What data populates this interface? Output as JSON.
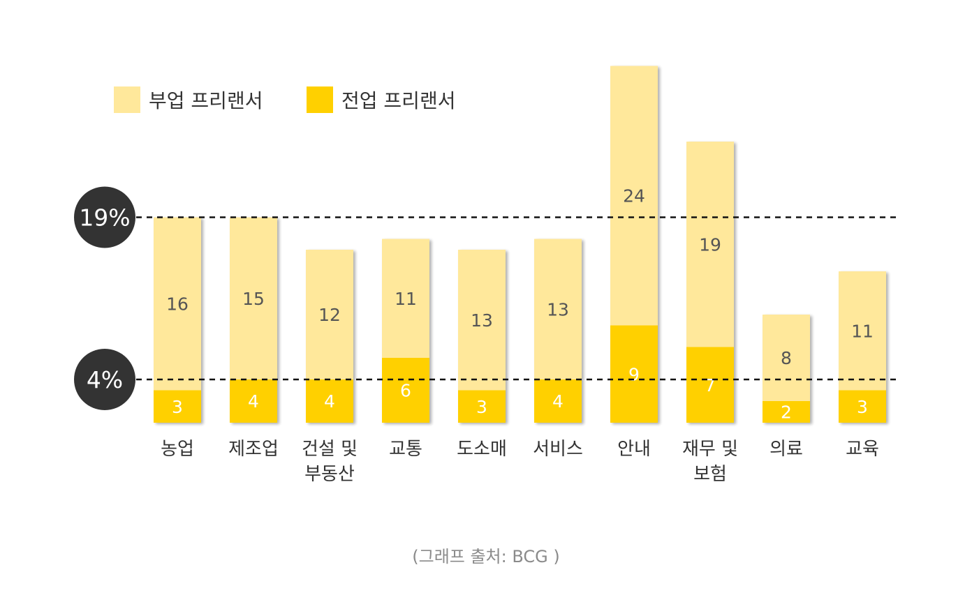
{
  "chart_data": {
    "type": "bar",
    "stacked": true,
    "categories": [
      "농업",
      "제조업",
      "건설 및\n부동산",
      "교통",
      "도소매",
      "서비스",
      "안내",
      "재무 및\n보험",
      "의료",
      "교육"
    ],
    "series": [
      {
        "name": "전업 프리랜서",
        "values": [
          3,
          4,
          4,
          6,
          3,
          4,
          9,
          7,
          2,
          3
        ],
        "color": "#FFD000"
      },
      {
        "name": "부업 프리랜서",
        "values": [
          16,
          15,
          12,
          11,
          13,
          13,
          24,
          19,
          8,
          11
        ],
        "color": "#FFE89B"
      }
    ],
    "legend_order": [
      "부업 프리랜서",
      "전업 프리랜서"
    ],
    "reference_lines": [
      {
        "value": 19,
        "label": "19%"
      },
      {
        "value": 4,
        "label": "4%"
      }
    ],
    "ylim": [
      0,
      35
    ],
    "grid": false,
    "legend_position": "top-left",
    "source": "(그래프 출처: BCG )"
  }
}
